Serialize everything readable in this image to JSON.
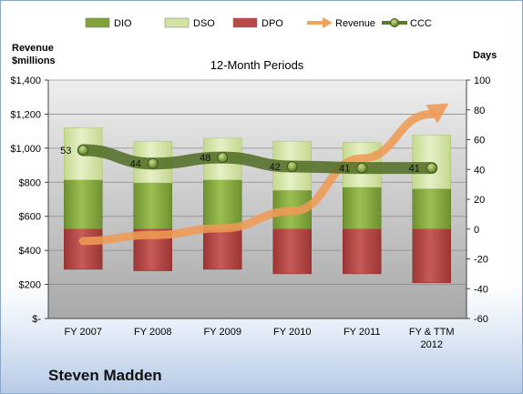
{
  "chart_data": {
    "type": "bar",
    "title": "12-Month Periods",
    "left_axis_title": [
      "Revenue",
      "$millions"
    ],
    "right_axis_title": "Days",
    "categories": [
      [
        "FY 2007"
      ],
      [
        "FY 2008"
      ],
      [
        "FY 2009"
      ],
      [
        "FY 2010"
      ],
      [
        "FY 2011"
      ],
      [
        "FY & TTM",
        "2012"
      ]
    ],
    "left_ticks": [
      "$-",
      "$200",
      "$400",
      "$600",
      "$800",
      "$1,000",
      "$1,200",
      "$1,400"
    ],
    "right_ticks": [
      "-60",
      "-40",
      "-20",
      "0",
      "20",
      "40",
      "60",
      "80",
      "100"
    ],
    "ylim_left": [
      0,
      1400
    ],
    "ylim_right": [
      -60,
      100
    ],
    "grid": true,
    "legend_position": "top",
    "legend": [
      {
        "key": "DIO",
        "label": "DIO",
        "kind": "bar",
        "color": "#7fa23a"
      },
      {
        "key": "DSO",
        "label": "DSO",
        "kind": "bar",
        "color": "#d3e3a4"
      },
      {
        "key": "DPO",
        "label": "DPO",
        "kind": "bar",
        "color": "#b94a48"
      },
      {
        "key": "Revenue",
        "label": "Revenue",
        "kind": "arrow",
        "color": "#f0a35a"
      },
      {
        "key": "CCC",
        "label": "CCC",
        "kind": "line-dot",
        "color": "#5a7a2a"
      }
    ],
    "dpo_bottom_days": [
      -27,
      -28,
      -27,
      -30,
      -30,
      -36
    ],
    "dio_top_days": [
      33,
      31,
      33,
      26,
      28,
      27
    ],
    "dso_top_days": [
      68,
      59,
      61,
      59,
      58,
      63
    ],
    "series": [
      {
        "name": "DIO",
        "values": [
          60,
          59,
          60,
          56,
          58,
          63
        ]
      },
      {
        "name": "DSO",
        "values": [
          35,
          28,
          28,
          33,
          30,
          36
        ]
      },
      {
        "name": "DPO",
        "values": [
          27,
          28,
          27,
          30,
          30,
          36
        ]
      },
      {
        "name": "Revenue",
        "axis": "left",
        "values": [
          455,
          490,
          530,
          630,
          940,
          1200
        ]
      },
      {
        "name": "CCC",
        "axis": "right",
        "values": [
          53,
          44,
          48,
          42,
          41,
          41
        ]
      }
    ]
  },
  "company": "Steven Madden"
}
